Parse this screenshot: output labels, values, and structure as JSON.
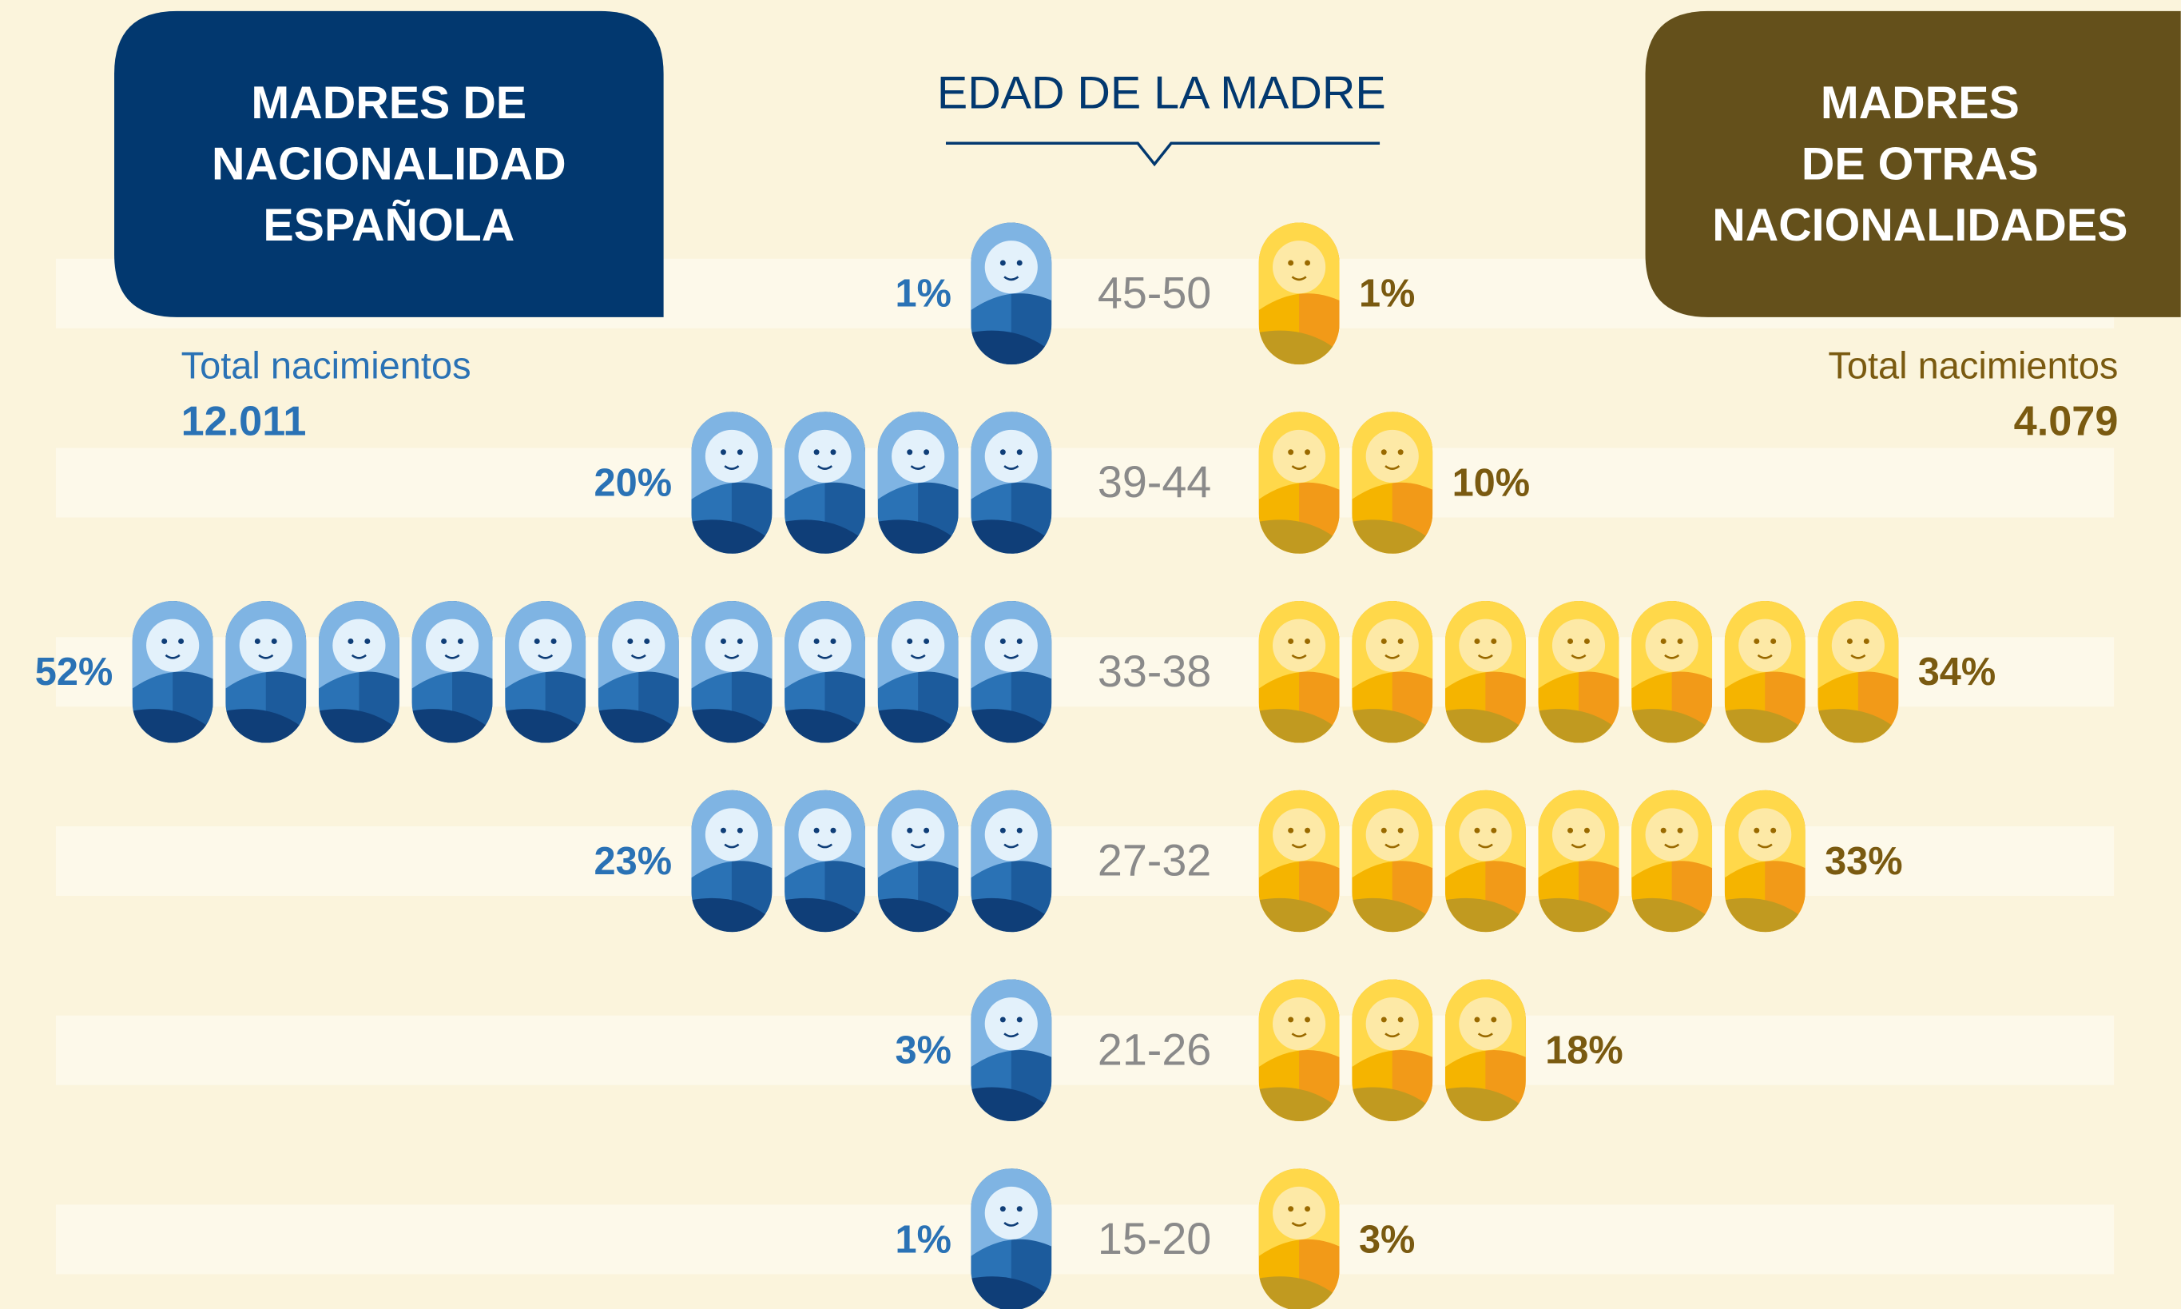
{
  "chart_data": {
    "type": "pictogram",
    "x_label": "EDAD DE LA MADRE",
    "categories": [
      "45-50",
      "39-44",
      "33-38",
      "27-32",
      "21-26",
      "15-20"
    ],
    "series": [
      {
        "name": "MADRES DE\nNACIONALIDAD\nESPAÑOLA",
        "color": "#2a72b5",
        "header_color": "#02386f",
        "total_label": "Total nacimientos",
        "total": "12.011",
        "values": [
          1,
          20,
          52,
          23,
          3,
          1
        ],
        "value_labels": [
          "1%",
          "20%",
          "52%",
          "23%",
          "3%",
          "1%"
        ]
      },
      {
        "name": "MADRES\nDE OTRAS\nNACIONALIDADES",
        "color": "#f5b400",
        "header_color": "#64501b",
        "total_label": "Total nacimientos",
        "total": "4.079",
        "values": [
          1,
          10,
          34,
          33,
          18,
          3
        ],
        "value_labels": [
          "1%",
          "10%",
          "34%",
          "33%",
          "18%",
          "3%"
        ]
      }
    ]
  }
}
